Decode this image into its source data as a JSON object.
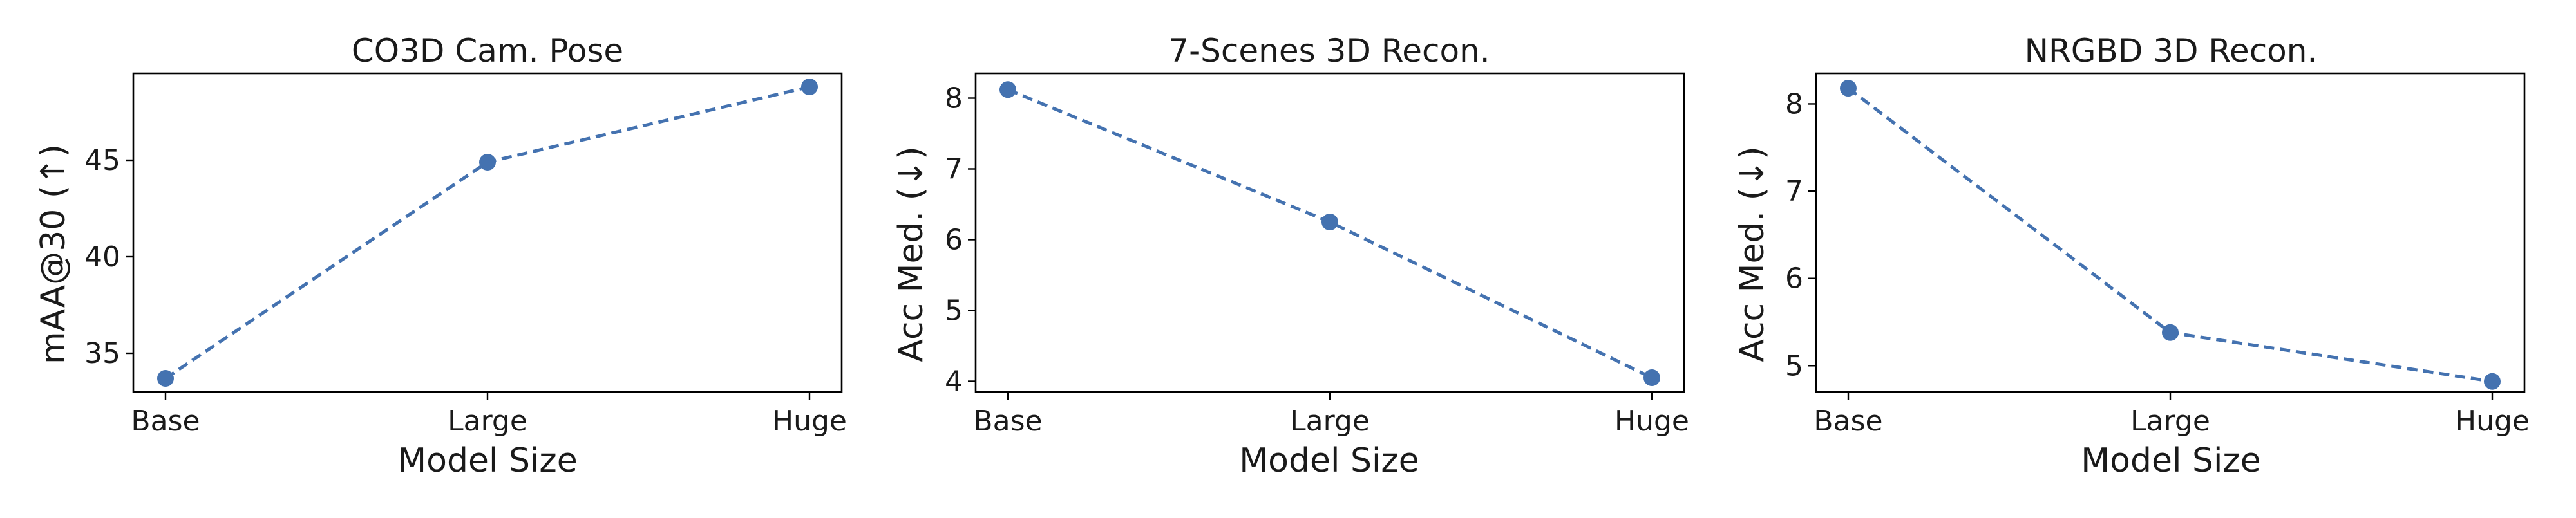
{
  "chart_data": [
    {
      "type": "line",
      "title": "CO3D Cam. Pose",
      "xlabel": "Model Size",
      "ylabel": "mAA@30 (↑)",
      "categories": [
        "Base",
        "Large",
        "Huge"
      ],
      "series": [
        {
          "values": [
            33.7,
            44.9,
            48.8
          ]
        }
      ],
      "ylim": [
        33,
        49.5
      ],
      "yticks": [
        35,
        40,
        45
      ],
      "color": "#4472b0",
      "grid": false
    },
    {
      "type": "line",
      "title": "7-Scenes 3D Recon.",
      "xlabel": "Model Size",
      "ylabel": "Acc Med. (↓)",
      "categories": [
        "Base",
        "Large",
        "Huge"
      ],
      "series": [
        {
          "values": [
            8.12,
            6.25,
            4.05
          ]
        }
      ],
      "ylim": [
        3.85,
        8.35
      ],
      "yticks": [
        4,
        5,
        6,
        7,
        8
      ],
      "color": "#4472b0",
      "grid": false
    },
    {
      "type": "line",
      "title": "NRGBD 3D Recon.",
      "xlabel": "Model Size",
      "ylabel": "Acc Med. (↓)",
      "categories": [
        "Base",
        "Large",
        "Huge"
      ],
      "series": [
        {
          "values": [
            8.18,
            5.38,
            4.82
          ]
        }
      ],
      "ylim": [
        4.7,
        8.35
      ],
      "yticks": [
        5,
        6,
        7,
        8
      ],
      "color": "#4472b0",
      "grid": false
    }
  ]
}
